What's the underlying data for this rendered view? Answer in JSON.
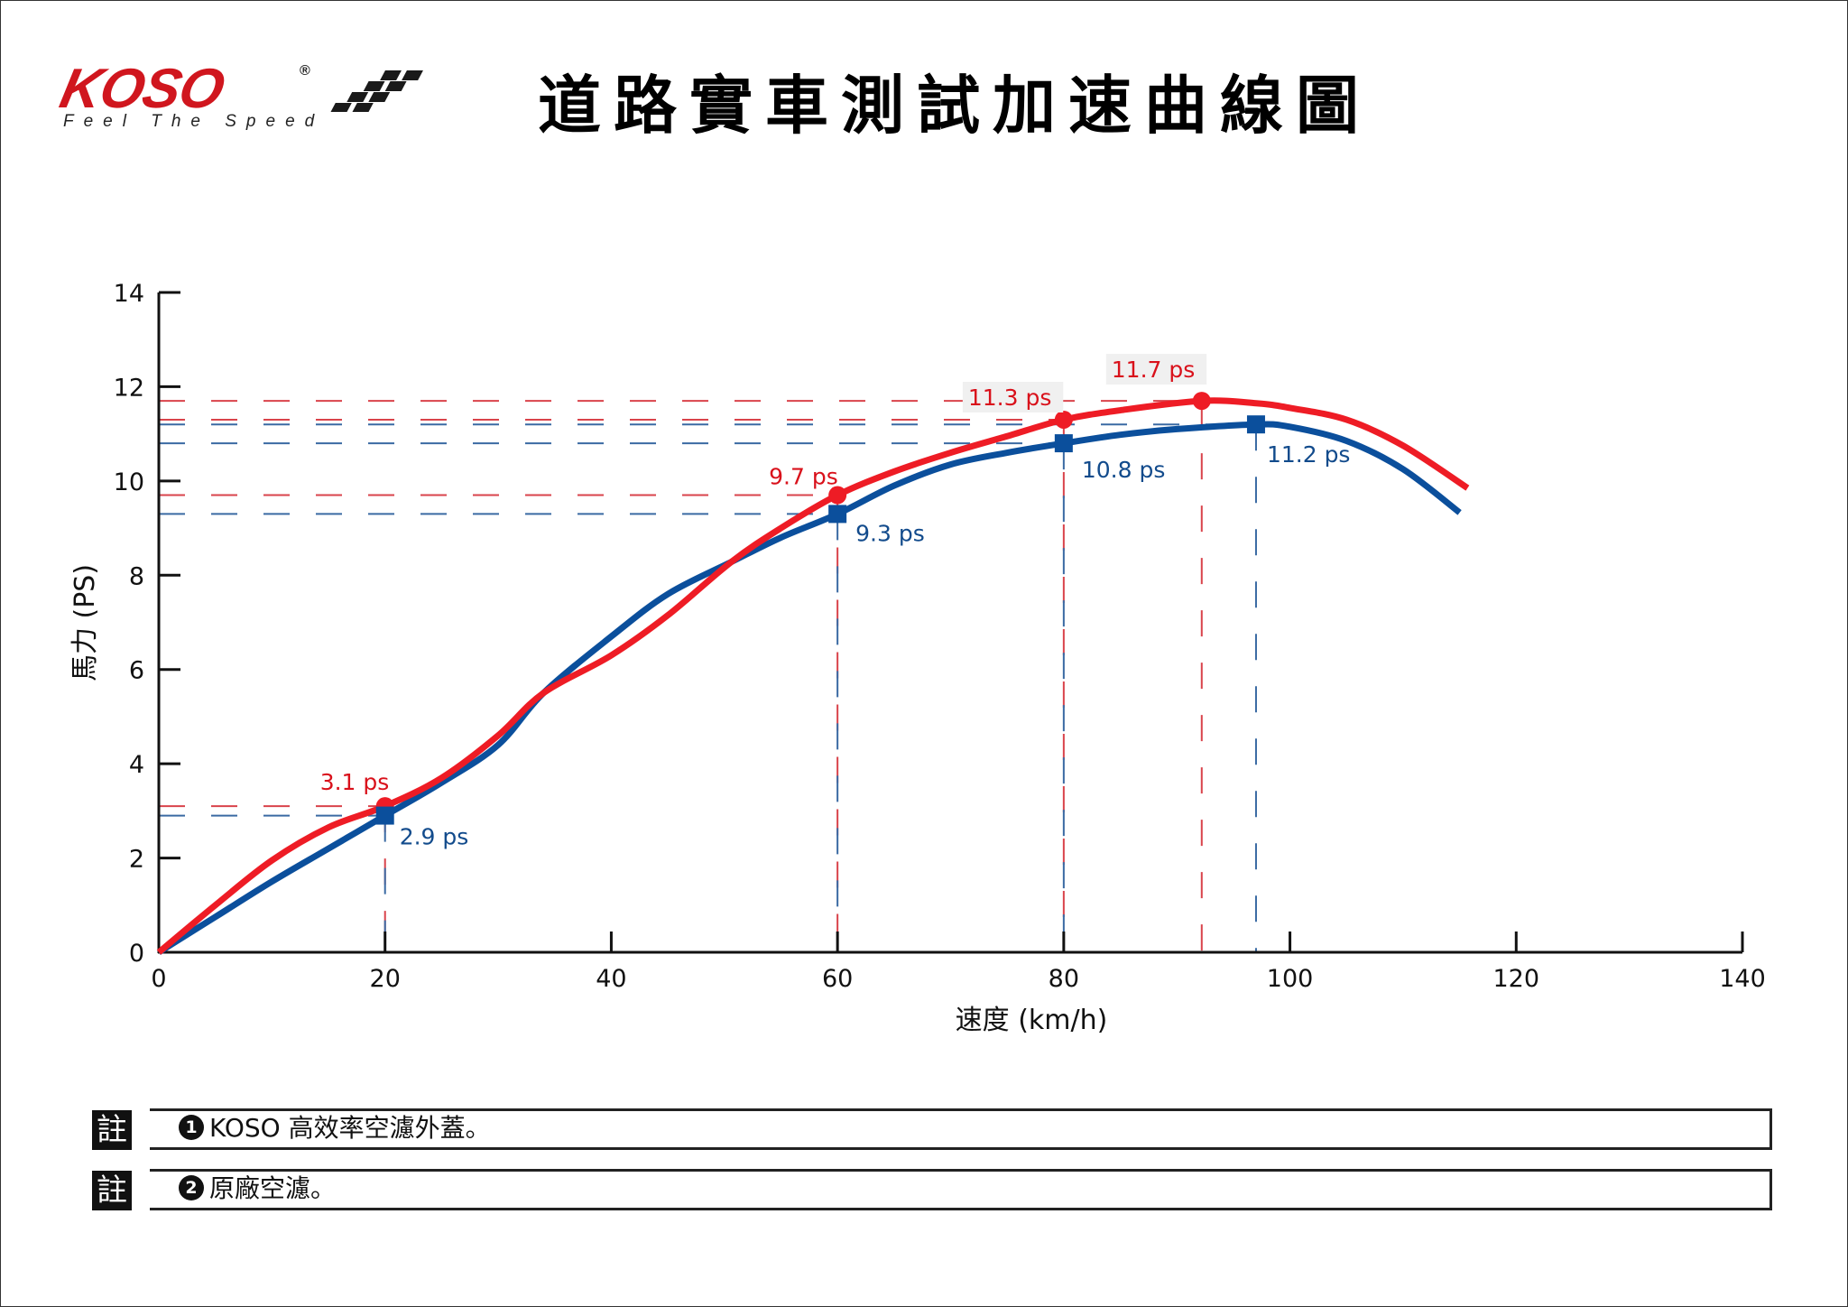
{
  "header": {
    "logo_word": "KOSO",
    "logo_registered": "®",
    "logo_tagline": "Feel The Speed",
    "title": "道路實車測試加速曲線圖"
  },
  "colors": {
    "koso": "#ee1c25",
    "stock": "#0b4f9c",
    "koso_dash": "#d9434b",
    "stock_dash": "#3a6aa3",
    "axis": "#111111",
    "label_bg": "#f0f0f0"
  },
  "chart_data": {
    "type": "line",
    "title": "道路實車測試加速曲線圖",
    "xlabel": "速度 (km/h)",
    "ylabel": "馬力 (PS)",
    "xlim": [
      0,
      140
    ],
    "ylim": [
      0,
      14
    ],
    "xticks": [
      0,
      20,
      40,
      60,
      80,
      100,
      120,
      140
    ],
    "yticks": [
      0,
      2,
      4,
      6,
      8,
      10,
      12,
      14
    ],
    "grid": false,
    "legend": "notes below chart",
    "series": [
      {
        "name": "KOSO 高效率空濾外蓋",
        "color": "#ee1c25",
        "marker": "circle",
        "x": [
          0,
          5,
          10,
          15,
          20,
          25,
          30,
          34,
          40,
          45,
          50.6,
          55,
          60,
          65,
          70,
          75,
          80,
          85,
          92.2,
          97,
          100,
          105,
          110,
          115.7
        ],
        "y": [
          0,
          1.0,
          1.95,
          2.65,
          3.1,
          3.7,
          4.6,
          5.5,
          6.3,
          7.15,
          8.28,
          9.0,
          9.7,
          10.2,
          10.6,
          10.95,
          11.3,
          11.5,
          11.7,
          11.65,
          11.55,
          11.3,
          10.75,
          9.85
        ],
        "highlights": [
          {
            "x": 20,
            "y": 3.1,
            "label": "3.1 ps"
          },
          {
            "x": 60,
            "y": 9.7,
            "label": "9.7 ps"
          },
          {
            "x": 80,
            "y": 11.3,
            "label": "11.3 ps"
          },
          {
            "x": 92.2,
            "y": 11.7,
            "label": "11.7 ps"
          }
        ]
      },
      {
        "name": "原廠空濾",
        "color": "#0b4f9c",
        "marker": "square",
        "x": [
          0,
          5,
          10,
          15,
          20,
          25,
          30,
          34,
          40,
          45,
          50.6,
          55,
          60,
          65,
          70,
          75,
          80,
          85,
          90,
          97,
          100,
          105,
          110,
          115
        ],
        "y": [
          0,
          0.75,
          1.5,
          2.2,
          2.9,
          3.6,
          4.4,
          5.5,
          6.7,
          7.6,
          8.28,
          8.8,
          9.3,
          9.9,
          10.35,
          10.6,
          10.8,
          10.98,
          11.1,
          11.2,
          11.15,
          10.85,
          10.25,
          9.33
        ],
        "highlights": [
          {
            "x": 20,
            "y": 2.9,
            "label": "2.9 ps"
          },
          {
            "x": 60,
            "y": 9.3,
            "label": "9.3 ps"
          },
          {
            "x": 80,
            "y": 10.8,
            "label": "10.8 ps"
          },
          {
            "x": 97,
            "y": 11.2,
            "label": "11.2 ps"
          }
        ]
      }
    ]
  },
  "notes": [
    {
      "tag": "註",
      "num": "1",
      "text": "KOSO 高效率空濾外蓋。"
    },
    {
      "tag": "註",
      "num": "2",
      "text": "原廠空濾。"
    }
  ]
}
